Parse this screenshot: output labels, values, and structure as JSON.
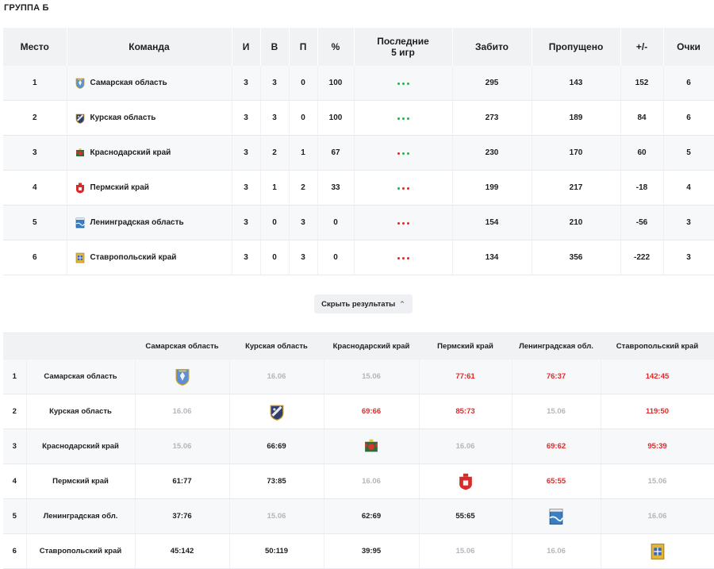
{
  "group_title": "ГРУППА Б",
  "colors": {
    "win": "#22b14c",
    "loss": "#e02929"
  },
  "standings": {
    "headers": {
      "place": "Место",
      "team": "Команда",
      "games": "И",
      "wins": "В",
      "losses": "П",
      "pct": "%",
      "last_line1": "Последние",
      "last_line2": "5 игр",
      "scored": "Забито",
      "conceded": "Пропущено",
      "diff": "+/-",
      "points": "Очки"
    },
    "rows": [
      {
        "place": "1",
        "team": "Самарская область",
        "emblem": "samara-emblem-icon",
        "games": "3",
        "wins": "3",
        "losses": "0",
        "pct": "100",
        "last": [
          "win",
          "win",
          "win"
        ],
        "scored": "295",
        "conceded": "143",
        "diff": "152",
        "points": "6"
      },
      {
        "place": "2",
        "team": "Курская область",
        "emblem": "kursk-emblem-icon",
        "games": "3",
        "wins": "3",
        "losses": "0",
        "pct": "100",
        "last": [
          "win",
          "win",
          "win"
        ],
        "scored": "273",
        "conceded": "189",
        "diff": "84",
        "points": "6"
      },
      {
        "place": "3",
        "team": "Краснодарский край",
        "emblem": "krasnodar-emblem-icon",
        "games": "3",
        "wins": "2",
        "losses": "1",
        "pct": "67",
        "last": [
          "loss",
          "win",
          "win"
        ],
        "scored": "230",
        "conceded": "170",
        "diff": "60",
        "points": "5"
      },
      {
        "place": "4",
        "team": "Пермский край",
        "emblem": "perm-emblem-icon",
        "games": "3",
        "wins": "1",
        "losses": "2",
        "pct": "33",
        "last": [
          "win",
          "loss",
          "loss"
        ],
        "scored": "199",
        "conceded": "217",
        "diff": "-18",
        "points": "4"
      },
      {
        "place": "5",
        "team": "Ленинградская область",
        "emblem": "leningrad-emblem-icon",
        "games": "3",
        "wins": "0",
        "losses": "3",
        "pct": "0",
        "last": [
          "loss",
          "loss",
          "loss"
        ],
        "scored": "154",
        "conceded": "210",
        "diff": "-56",
        "points": "3"
      },
      {
        "place": "6",
        "team": "Ставропольский край",
        "emblem": "stavropol-emblem-icon",
        "games": "3",
        "wins": "0",
        "losses": "3",
        "pct": "0",
        "last": [
          "loss",
          "loss",
          "loss"
        ],
        "scored": "134",
        "conceded": "356",
        "diff": "-222",
        "points": "3"
      }
    ]
  },
  "toggle": {
    "label": "Скрыть результаты"
  },
  "cross": {
    "columns": [
      "Самарская область",
      "Курская область",
      "Краснодарский край",
      "Пермский край",
      "Ленинградская обл.",
      "Ставропольский край"
    ],
    "rows": [
      {
        "num": "1",
        "team": "Самарская область",
        "cells": [
          {
            "kind": "emblem",
            "emblem": "samara-emblem-icon"
          },
          {
            "kind": "date",
            "text": "16.06"
          },
          {
            "kind": "date",
            "text": "15.06"
          },
          {
            "kind": "red",
            "text": "77:61"
          },
          {
            "kind": "red",
            "text": "76:37"
          },
          {
            "kind": "red",
            "text": "142:45"
          }
        ]
      },
      {
        "num": "2",
        "team": "Курская область",
        "cells": [
          {
            "kind": "date",
            "text": "16.06"
          },
          {
            "kind": "emblem",
            "emblem": "kursk-emblem-icon"
          },
          {
            "kind": "red",
            "text": "69:66"
          },
          {
            "kind": "red",
            "text": "85:73"
          },
          {
            "kind": "date",
            "text": "15.06"
          },
          {
            "kind": "red",
            "text": "119:50"
          }
        ]
      },
      {
        "num": "3",
        "team": "Краснодарский край",
        "cells": [
          {
            "kind": "date",
            "text": "15.06"
          },
          {
            "kind": "dark",
            "text": "66:69"
          },
          {
            "kind": "emblem",
            "emblem": "krasnodar-emblem-icon"
          },
          {
            "kind": "date",
            "text": "16.06"
          },
          {
            "kind": "red",
            "text": "69:62"
          },
          {
            "kind": "red",
            "text": "95:39"
          }
        ]
      },
      {
        "num": "4",
        "team": "Пермский край",
        "cells": [
          {
            "kind": "dark",
            "text": "61:77"
          },
          {
            "kind": "dark",
            "text": "73:85"
          },
          {
            "kind": "date",
            "text": "16.06"
          },
          {
            "kind": "emblem",
            "emblem": "perm-emblem-icon"
          },
          {
            "kind": "red",
            "text": "65:55"
          },
          {
            "kind": "date",
            "text": "15.06"
          }
        ]
      },
      {
        "num": "5",
        "team": "Ленинградская обл.",
        "cells": [
          {
            "kind": "dark",
            "text": "37:76"
          },
          {
            "kind": "date",
            "text": "15.06"
          },
          {
            "kind": "dark",
            "text": "62:69"
          },
          {
            "kind": "dark",
            "text": "55:65"
          },
          {
            "kind": "emblem",
            "emblem": "leningrad-emblem-icon"
          },
          {
            "kind": "date",
            "text": "16.06"
          }
        ]
      },
      {
        "num": "6",
        "team": "Ставропольский край",
        "cells": [
          {
            "kind": "dark",
            "text": "45:142"
          },
          {
            "kind": "dark",
            "text": "50:119"
          },
          {
            "kind": "dark",
            "text": "39:95"
          },
          {
            "kind": "date",
            "text": "15.06"
          },
          {
            "kind": "date",
            "text": "16.06"
          },
          {
            "kind": "emblem",
            "emblem": "stavropol-emblem-icon"
          }
        ]
      }
    ]
  }
}
